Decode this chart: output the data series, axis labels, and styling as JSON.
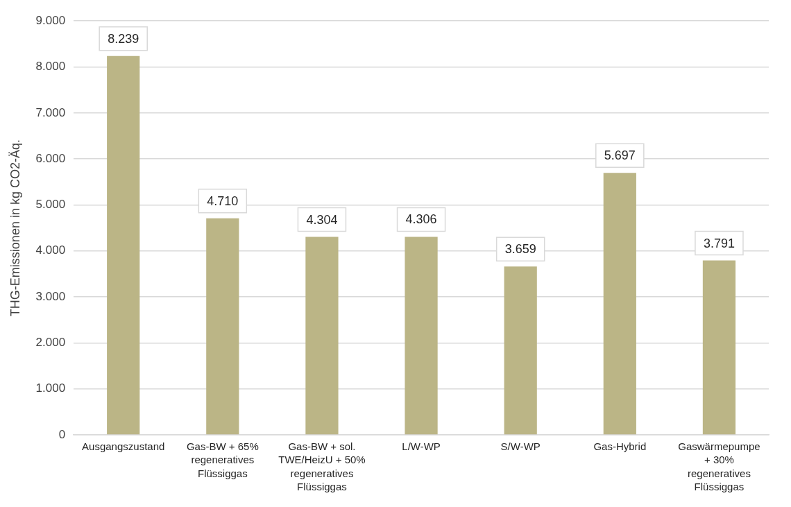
{
  "chart_data": {
    "type": "bar",
    "ylabel": "THG-Emissionen in kg CO2-Äq.",
    "categories": [
      "Ausgangszustand",
      "Gas-BW + 65% regeneratives Flüssiggas",
      "Gas-BW + sol. TWE/HeizU + 50% regeneratives Flüssiggas",
      "L/W-WP",
      "S/W-WP",
      "Gas-Hybrid",
      "Gaswärmepumpe + 30% regeneratives Flüssiggas"
    ],
    "values": [
      8239,
      4710,
      4304,
      4306,
      3659,
      5697,
      3791
    ],
    "value_labels": [
      "8.239",
      "4.710",
      "4.304",
      "4.306",
      "3.659",
      "5.697",
      "3.791"
    ],
    "color": "#bbb586",
    "ylim": [
      0,
      9000
    ],
    "yticks": [
      0,
      {
        "value": 1000,
        "label": "1.000"
      },
      {
        "value": 2000,
        "label": "2.000"
      },
      {
        "value": 3000,
        "label": "3.000"
      },
      {
        "value": 4000,
        "label": "4.000"
      },
      {
        "value": 5000,
        "label": "5.000"
      },
      {
        "value": 6000,
        "label": "6.000"
      },
      {
        "value": 7000,
        "label": "7.000"
      },
      {
        "value": 8000,
        "label": "8.000"
      },
      {
        "value": 9000,
        "label": "9.000"
      }
    ],
    "grid": "y"
  }
}
